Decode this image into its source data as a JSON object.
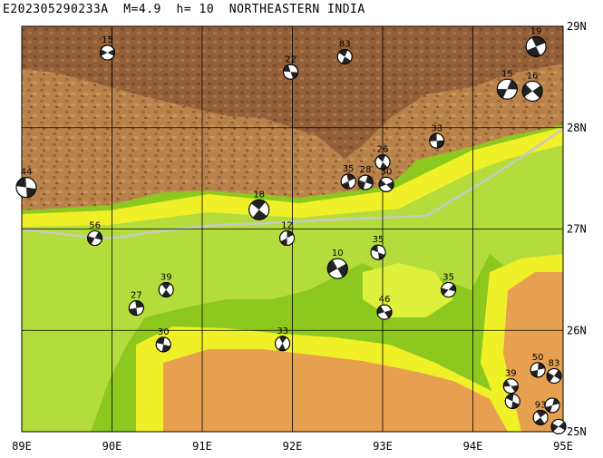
{
  "title": "E202305290233A  M=4.9  h= 10  NORTHEASTERN INDIA",
  "colors": {
    "plain_green": "#8cc81e",
    "light_green": "#b4dc3c",
    "yellow_green": "#dcf03c",
    "yellow": "#f0f028",
    "tan": "#e6a050",
    "brown_mid": "#b9824b",
    "brown_dark": "#8c5a32",
    "river": "#c8c8c8"
  },
  "axes": {
    "lon_labels": [
      "89E",
      "90E",
      "91E",
      "92E",
      "93E",
      "94E",
      "95E"
    ],
    "lat_labels": [
      "29N",
      "28N",
      "27N",
      "26N",
      "25N"
    ]
  },
  "mechanisms": [
    {
      "label": "15",
      "lon": 89.95,
      "lat": 28.74,
      "size": "s"
    },
    {
      "label": "22",
      "lon": 91.98,
      "lat": 28.55,
      "size": "s"
    },
    {
      "label": "83",
      "lon": 92.58,
      "lat": 28.7,
      "size": "s"
    },
    {
      "label": "19",
      "lon": 94.7,
      "lat": 28.8,
      "size": "m"
    },
    {
      "label": "15",
      "lon": 94.38,
      "lat": 28.38,
      "size": "m"
    },
    {
      "label": "16",
      "lon": 94.66,
      "lat": 28.36,
      "size": "m"
    },
    {
      "label": "33",
      "lon": 93.6,
      "lat": 27.87,
      "size": "s"
    },
    {
      "label": "26",
      "lon": 93.0,
      "lat": 27.66,
      "size": "s"
    },
    {
      "label": "35",
      "lon": 92.62,
      "lat": 27.47,
      "size": "s"
    },
    {
      "label": "28",
      "lon": 92.81,
      "lat": 27.46,
      "size": "s"
    },
    {
      "label": "30",
      "lon": 93.04,
      "lat": 27.44,
      "size": "s"
    },
    {
      "label": "44",
      "lon": 89.05,
      "lat": 27.41,
      "size": "m"
    },
    {
      "label": "18",
      "lon": 91.63,
      "lat": 27.19,
      "size": "m"
    },
    {
      "label": "12",
      "lon": 91.94,
      "lat": 26.91,
      "size": "s"
    },
    {
      "label": "56",
      "lon": 89.81,
      "lat": 26.91,
      "size": "s"
    },
    {
      "label": "10",
      "lon": 92.5,
      "lat": 26.61,
      "size": "m"
    },
    {
      "label": "35",
      "lon": 92.95,
      "lat": 26.77,
      "size": "s"
    },
    {
      "label": "39",
      "lon": 90.6,
      "lat": 26.4,
      "size": "s"
    },
    {
      "label": "27",
      "lon": 90.27,
      "lat": 26.22,
      "size": "s"
    },
    {
      "label": "35",
      "lon": 93.73,
      "lat": 26.4,
      "size": "s"
    },
    {
      "label": "46",
      "lon": 93.02,
      "lat": 26.18,
      "size": "s"
    },
    {
      "label": "30",
      "lon": 90.57,
      "lat": 25.86,
      "size": "s"
    },
    {
      "label": "33",
      "lon": 91.89,
      "lat": 25.87,
      "size": "s"
    },
    {
      "label": "50",
      "lon": 94.72,
      "lat": 25.61,
      "size": "s"
    },
    {
      "label": "83",
      "lon": 94.9,
      "lat": 25.55,
      "size": "s"
    },
    {
      "label": "39",
      "lon": 94.42,
      "lat": 25.45,
      "size": "s"
    },
    {
      "label": "",
      "lon": 94.44,
      "lat": 25.3,
      "size": "s"
    },
    {
      "label": "93",
      "lon": 94.75,
      "lat": 25.14,
      "size": "s"
    },
    {
      "label": "",
      "lon": 94.88,
      "lat": 25.26,
      "size": "s"
    },
    {
      "label": "",
      "lon": 94.95,
      "lat": 25.05,
      "size": "s"
    }
  ]
}
